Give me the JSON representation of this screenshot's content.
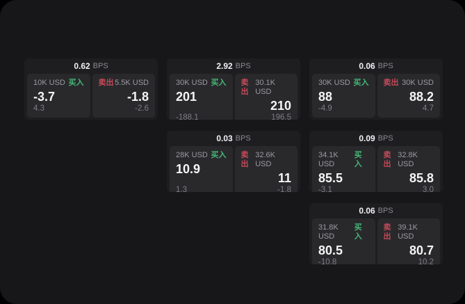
{
  "labels": {
    "bps": "BPS",
    "buy": "买入",
    "sell": "卖出"
  },
  "colors": {
    "buy_green": "#46b876",
    "sell_red": "#c44a57",
    "page_bg": "#17171a",
    "card_bg": "#1e1e21",
    "panel_bg": "#29292c"
  },
  "cards": [
    {
      "bps": "0.62",
      "buy": {
        "amount": "10K USD",
        "value": "-3.7",
        "sub": "4.3"
      },
      "sell": {
        "amount": "5.5K USD",
        "value": "-1.8",
        "sub": "-2.6"
      }
    },
    {
      "bps": "2.92",
      "buy": {
        "amount": "30K USD",
        "value": "201",
        "sub": "-188.1"
      },
      "sell": {
        "amount": "30.1K USD",
        "value": "210",
        "sub": "196.5"
      }
    },
    {
      "bps": "0.06",
      "buy": {
        "amount": "30K USD",
        "value": "88",
        "sub": "-4.9"
      },
      "sell": {
        "amount": "30K USD",
        "value": "88.2",
        "sub": "4.7"
      }
    },
    {
      "bps": "0.03",
      "buy": {
        "amount": "28K USD",
        "value": "10.9",
        "sub": "1.3"
      },
      "sell": {
        "amount": "32.6K USD",
        "value": "11",
        "sub": "-1.8"
      }
    },
    {
      "bps": "0.09",
      "buy": {
        "amount": "34.1K USD",
        "value": "85.5",
        "sub": "-3.1"
      },
      "sell": {
        "amount": "32.8K USD",
        "value": "85.8",
        "sub": "3.0"
      }
    },
    {
      "bps": "0.06",
      "buy": {
        "amount": "31.8K USD",
        "value": "80.5",
        "sub": "-10.8"
      },
      "sell": {
        "amount": "39.1K USD",
        "value": "80.7",
        "sub": "10.2"
      }
    }
  ]
}
